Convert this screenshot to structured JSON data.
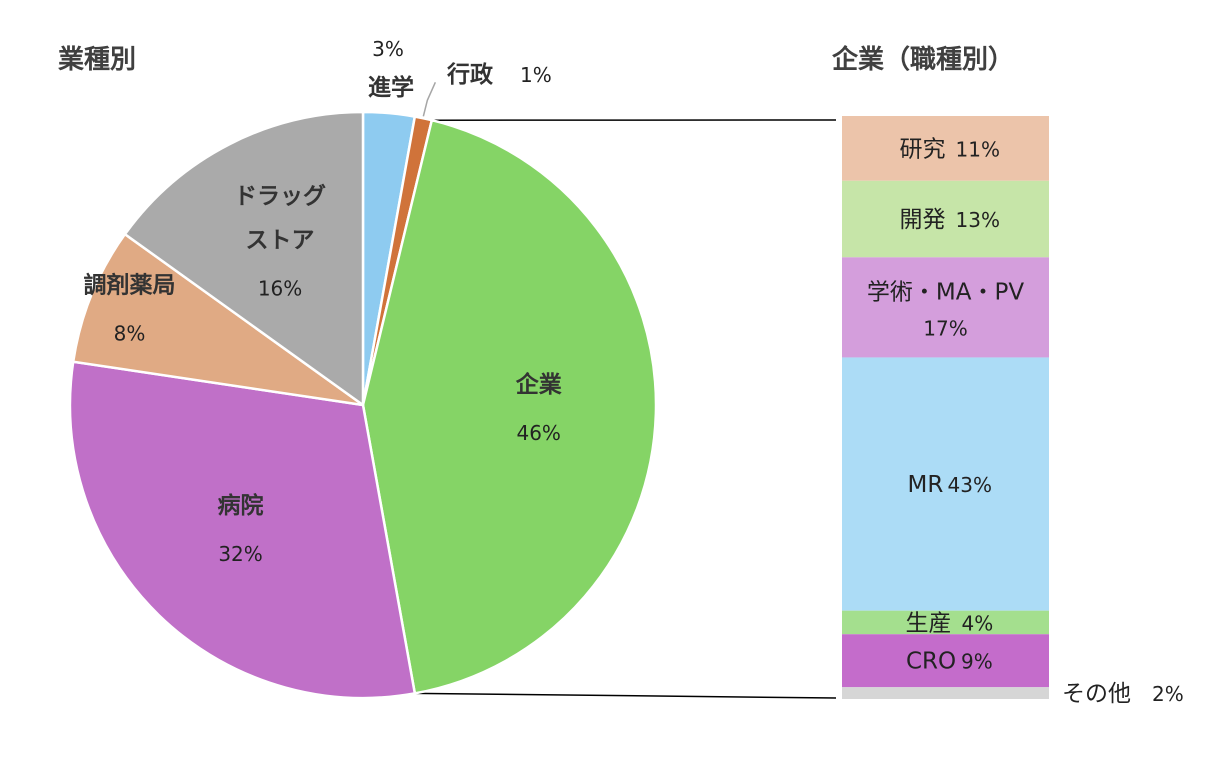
{
  "chart_data": [
    {
      "type": "pie",
      "title": "業種別",
      "slices": [
        {
          "label": "進学",
          "value": 3,
          "value_label": "3%",
          "color": "#8ecbf0"
        },
        {
          "label": "行政",
          "value": 1,
          "value_label": "1%",
          "color": "#d0733a"
        },
        {
          "label": "企業",
          "value": 46,
          "value_label": "46%",
          "color": "#85d466"
        },
        {
          "label": "病院",
          "value": 32,
          "value_label": "32%",
          "color": "#c070c8"
        },
        {
          "label": "調剤薬局",
          "value": 8,
          "value_label": "8%",
          "color": "#e0aa84"
        },
        {
          "label": "ドラッグストア",
          "label_lines": [
            "ドラッグ",
            "ストア"
          ],
          "value": 16,
          "value_label": "16%",
          "color": "#aaaaaa"
        }
      ]
    },
    {
      "type": "bar",
      "stacked": true,
      "title": "企業（職種別）",
      "segments": [
        {
          "label": "研究",
          "value": 11,
          "value_label": "11%",
          "color": "#ecc4aa"
        },
        {
          "label": "開発",
          "value": 13,
          "value_label": "13%",
          "color": "#c6e5a8"
        },
        {
          "label": "学術・MA・PV",
          "value": 17,
          "value_label": "17%",
          "color": "#d49edc"
        },
        {
          "label": "MR",
          "value": 43,
          "value_label": "43%",
          "color": "#acdcf6"
        },
        {
          "label": "生産",
          "value": 4,
          "value_label": "4%",
          "color": "#a4df8e"
        },
        {
          "label": "CRO",
          "value": 9,
          "value_label": "9%",
          "color": "#c46ccb"
        },
        {
          "label": "その他",
          "value": 2,
          "value_label": "2%",
          "color": "#d6d6d6"
        }
      ]
    }
  ]
}
